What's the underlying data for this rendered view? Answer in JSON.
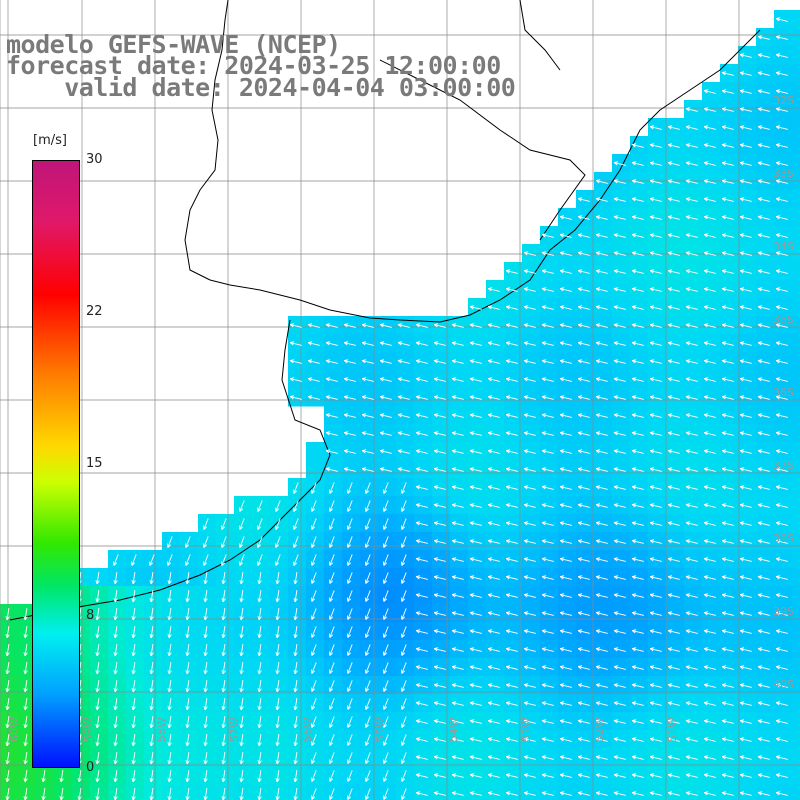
{
  "title": {
    "line1": "modelo GEFS-WAVE (NCEP)",
    "line2": "forecast date: 2024-03-25 12:00:00",
    "line3": "    valid date: 2024-04-04 03:00:00"
  },
  "colorbar": {
    "unit": "[m/s]",
    "ticks": [
      "30",
      "22",
      "15",
      "8",
      "0"
    ],
    "range": [
      0,
      30
    ],
    "colors": [
      "#0010ff",
      "#00a0ff",
      "#00f0f0",
      "#00e664",
      "#32e800",
      "#ccff00",
      "#ffd800",
      "#ff7a00",
      "#ff0000",
      "#e0186a",
      "#c0157a"
    ]
  },
  "lat_labels": [
    "32S",
    "33S",
    "34S",
    "35S",
    "36S",
    "37S",
    "38S",
    "39S",
    "40S"
  ],
  "lon_labels": [
    "60W",
    "59W",
    "58W",
    "57W",
    "56W",
    "55W",
    "54W",
    "53W",
    "52W",
    "51W"
  ],
  "colors": {
    "land": "#ffffff",
    "coast": "#000000",
    "grid": "#888888",
    "arrows": "#ffffff",
    "title_text": "#7a7a7a"
  },
  "wind_field": {
    "direction": "from north-east to south-west over the open ocean, southward near the southwest coast",
    "speed_range_m_s": [
      4,
      11
    ]
  }
}
